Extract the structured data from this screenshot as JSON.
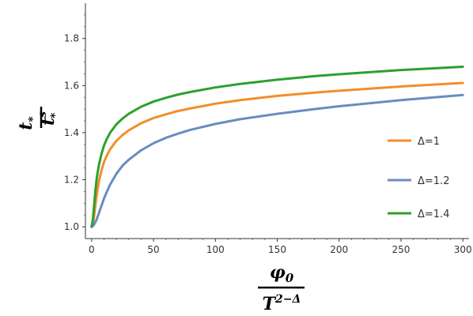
{
  "chart_data": {
    "type": "line",
    "title": "",
    "xlabel": {
      "numerator": "φ",
      "numerator_sub": "0",
      "denominator": "T",
      "denominator_sup": "2−Δ"
    },
    "ylabel": {
      "numerator": "t",
      "numerator_sub": "*",
      "denominator": "t",
      "denominator_sup": "s",
      "denominator_sub": "*"
    },
    "xlim": [
      -5,
      305
    ],
    "ylim": [
      0.95,
      1.95
    ],
    "xticks": [
      0,
      50,
      100,
      150,
      200,
      250,
      300
    ],
    "yticks": [
      1.0,
      1.2,
      1.4,
      1.6,
      1.8
    ],
    "grid": false,
    "legend_position": "right",
    "series": [
      {
        "name": "Δ=1",
        "color": "#f28e2b",
        "x": [
          0,
          1,
          2,
          3,
          4,
          5,
          6,
          8,
          10,
          12,
          15,
          20,
          25,
          30,
          40,
          50,
          60,
          70,
          80,
          100,
          120,
          150,
          180,
          200,
          250,
          300
        ],
        "y": [
          1.0,
          1.01,
          1.045,
          1.09,
          1.13,
          1.165,
          1.195,
          1.24,
          1.275,
          1.3,
          1.33,
          1.365,
          1.39,
          1.41,
          1.44,
          1.462,
          1.478,
          1.492,
          1.503,
          1.523,
          1.538,
          1.556,
          1.57,
          1.578,
          1.596,
          1.611
        ]
      },
      {
        "name": "Δ=1.2",
        "color": "#6a8cbf",
        "x": [
          0,
          1,
          2,
          3,
          4,
          5,
          6,
          8,
          10,
          12,
          15,
          20,
          25,
          30,
          40,
          50,
          60,
          70,
          80,
          100,
          120,
          150,
          180,
          200,
          250,
          300
        ],
        "y": [
          1.0,
          1.003,
          1.01,
          1.02,
          1.03,
          1.045,
          1.06,
          1.09,
          1.12,
          1.145,
          1.18,
          1.225,
          1.26,
          1.285,
          1.325,
          1.355,
          1.378,
          1.396,
          1.412,
          1.437,
          1.457,
          1.48,
          1.5,
          1.512,
          1.538,
          1.56
        ]
      },
      {
        "name": "Δ=1.4",
        "color": "#2ca02c",
        "x": [
          0,
          1,
          2,
          3,
          4,
          5,
          6,
          8,
          10,
          12,
          15,
          20,
          25,
          30,
          40,
          50,
          60,
          70,
          80,
          100,
          120,
          150,
          180,
          200,
          250,
          300
        ],
        "y": [
          1.0,
          1.03,
          1.09,
          1.15,
          1.2,
          1.235,
          1.265,
          1.31,
          1.345,
          1.37,
          1.4,
          1.435,
          1.46,
          1.48,
          1.51,
          1.532,
          1.548,
          1.562,
          1.573,
          1.592,
          1.607,
          1.625,
          1.64,
          1.648,
          1.666,
          1.68
        ]
      }
    ]
  }
}
